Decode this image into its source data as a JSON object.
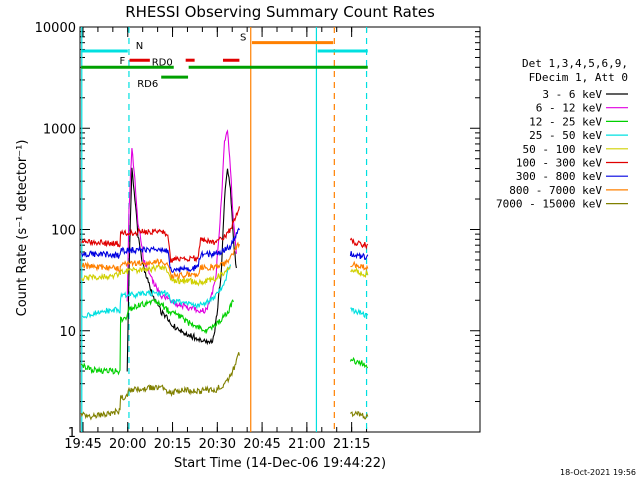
{
  "chart_data": {
    "type": "line",
    "title": "RHESSI Observing Summary Count Rates",
    "xlabel": "Start Time (14-Dec-06 19:44:22)",
    "ylabel": "Count Rate (s⁻¹ detector⁻¹)",
    "y_scale": "log",
    "x_range_minutes": [
      19.6,
      153.6
    ],
    "x_ticks": [
      {
        "t": 0.6,
        "label": "19:45"
      },
      {
        "t": 15.6,
        "label": "20:00"
      },
      {
        "t": 30.6,
        "label": "20:15"
      },
      {
        "t": 45.6,
        "label": "20:30"
      },
      {
        "t": 60.6,
        "label": "20:45"
      },
      {
        "t": 75.6,
        "label": "21:00"
      },
      {
        "t": 90.6,
        "label": "21:15"
      }
    ],
    "ylim": [
      1,
      10000
    ],
    "y_ticks": [
      {
        "v": 1,
        "label": "1"
      },
      {
        "v": 10,
        "label": "10"
      },
      {
        "v": 100,
        "label": "100"
      },
      {
        "v": 1000,
        "label": "1000"
      },
      {
        "v": 10000,
        "label": "10000"
      }
    ],
    "legend_header": [
      "Det 1,3,4,5,6,9,",
      "FDecim 1, Att 0"
    ],
    "series": [
      {
        "name": "3 - 6 keV",
        "color": "#000000",
        "points": [
          [
            0,
            null
          ],
          [
            15.2,
            null
          ],
          [
            15.4,
            4
          ],
          [
            16,
            40
          ],
          [
            17,
            380
          ],
          [
            18,
            200
          ],
          [
            19,
            90
          ],
          [
            21,
            40
          ],
          [
            24,
            22
          ],
          [
            27,
            15
          ],
          [
            30,
            12
          ],
          [
            33,
            10
          ],
          [
            36,
            9
          ],
          [
            39,
            8.5
          ],
          [
            42,
            8
          ],
          [
            44,
            7.5
          ],
          [
            45,
            11
          ],
          [
            47,
            40
          ],
          [
            48,
            200
          ],
          [
            49,
            380
          ],
          [
            50,
            250
          ],
          [
            51,
            80
          ],
          [
            52,
            40
          ],
          [
            53,
            null
          ],
          [
            96,
            null
          ]
        ]
      },
      {
        "name": "6 - 12 keV",
        "color": "#e000e0",
        "points": [
          [
            0,
            null
          ],
          [
            15.2,
            null
          ],
          [
            15.4,
            20
          ],
          [
            16,
            150
          ],
          [
            17,
            650
          ],
          [
            18,
            300
          ],
          [
            19,
            120
          ],
          [
            21,
            50
          ],
          [
            24,
            30
          ],
          [
            27,
            22
          ],
          [
            30,
            20
          ],
          [
            33,
            18
          ],
          [
            36,
            17
          ],
          [
            39,
            16
          ],
          [
            42,
            16
          ],
          [
            45,
            30
          ],
          [
            47,
            200
          ],
          [
            48,
            700
          ],
          [
            49,
            1000
          ],
          [
            50,
            400
          ],
          [
            51,
            120
          ],
          [
            52,
            60
          ],
          [
            53,
            null
          ],
          [
            96,
            null
          ]
        ]
      },
      {
        "name": "12 - 25 keV",
        "color": "#00d000",
        "points": [
          [
            0,
            4.5
          ],
          [
            3,
            4.2
          ],
          [
            8,
            4
          ],
          [
            12,
            4
          ],
          [
            13,
            4
          ],
          [
            13.2,
            13
          ],
          [
            15,
            13
          ],
          [
            16,
            16
          ],
          [
            20,
            18
          ],
          [
            25,
            19
          ],
          [
            28,
            17
          ],
          [
            30,
            15
          ],
          [
            33,
            14
          ],
          [
            36,
            12
          ],
          [
            39,
            11
          ],
          [
            42,
            10
          ],
          [
            45,
            11
          ],
          [
            47,
            13
          ],
          [
            49,
            15
          ],
          [
            51,
            20
          ],
          [
            53,
            null
          ],
          [
            90,
            null
          ],
          [
            90.2,
            5
          ],
          [
            93,
            5
          ],
          [
            96,
            4.5
          ]
        ]
      },
      {
        "name": "25 - 50 keV",
        "color": "#00e0e0",
        "points": [
          [
            0,
            null
          ],
          [
            0.2,
            14
          ],
          [
            5,
            15
          ],
          [
            10,
            16
          ],
          [
            13,
            16
          ],
          [
            13.2,
            22
          ],
          [
            20,
            23
          ],
          [
            27,
            24
          ],
          [
            29,
            23
          ],
          [
            30,
            20
          ],
          [
            33,
            19
          ],
          [
            36,
            19
          ],
          [
            39,
            18
          ],
          [
            42,
            19
          ],
          [
            45,
            22
          ],
          [
            48,
            30
          ],
          [
            50,
            45
          ],
          [
            53,
            null
          ],
          [
            90,
            null
          ],
          [
            90.2,
            16
          ],
          [
            93,
            15
          ],
          [
            96,
            14
          ]
        ]
      },
      {
        "name": "50 - 100 keV",
        "color": "#d0d000",
        "points": [
          [
            0,
            null
          ],
          [
            0.2,
            33
          ],
          [
            5,
            34
          ],
          [
            10,
            35
          ],
          [
            13,
            36
          ],
          [
            13.2,
            38
          ],
          [
            20,
            40
          ],
          [
            27,
            42
          ],
          [
            29,
            40
          ],
          [
            30,
            32
          ],
          [
            33,
            31
          ],
          [
            36,
            31
          ],
          [
            39,
            30
          ],
          [
            42,
            31
          ],
          [
            45,
            33
          ],
          [
            48,
            38
          ],
          [
            50,
            45
          ],
          [
            53,
            null
          ],
          [
            90,
            null
          ],
          [
            90.2,
            40
          ],
          [
            93,
            38
          ],
          [
            96,
            36
          ]
        ]
      },
      {
        "name": "100 - 300 keV",
        "color": "#e00000",
        "points": [
          [
            0,
            null
          ],
          [
            0.2,
            78
          ],
          [
            5,
            75
          ],
          [
            10,
            73
          ],
          [
            13,
            72
          ],
          [
            13.2,
            90
          ],
          [
            20,
            95
          ],
          [
            27,
            95
          ],
          [
            29,
            92
          ],
          [
            30,
            50
          ],
          [
            33,
            50
          ],
          [
            36,
            52
          ],
          [
            39,
            52
          ],
          [
            40,
            80
          ],
          [
            45,
            75
          ],
          [
            48,
            85
          ],
          [
            50,
            100
          ],
          [
            53,
            160
          ],
          [
            53.1,
            null
          ],
          [
            90,
            null
          ],
          [
            90.2,
            78
          ],
          [
            93,
            72
          ],
          [
            96,
            70
          ]
        ]
      },
      {
        "name": "300 - 800 keV",
        "color": "#0000e0",
        "points": [
          [
            0,
            null
          ],
          [
            0.2,
            58
          ],
          [
            5,
            57
          ],
          [
            10,
            56
          ],
          [
            13,
            55
          ],
          [
            13.2,
            62
          ],
          [
            20,
            63
          ],
          [
            27,
            64
          ],
          [
            29,
            62
          ],
          [
            30,
            40
          ],
          [
            33,
            40
          ],
          [
            36,
            41
          ],
          [
            39,
            42
          ],
          [
            40,
            56
          ],
          [
            45,
            58
          ],
          [
            48,
            62
          ],
          [
            50,
            68
          ],
          [
            53,
            100
          ],
          [
            53.1,
            null
          ],
          [
            90,
            null
          ],
          [
            90.2,
            58
          ],
          [
            93,
            55
          ],
          [
            96,
            54
          ]
        ]
      },
      {
        "name": "800 - 7000 keV",
        "color": "#ff8000",
        "points": [
          [
            0,
            null
          ],
          [
            0.2,
            44
          ],
          [
            5,
            43
          ],
          [
            10,
            42
          ],
          [
            13,
            41
          ],
          [
            13.2,
            46
          ],
          [
            20,
            47
          ],
          [
            27,
            48
          ],
          [
            29,
            46
          ],
          [
            30,
            35
          ],
          [
            33,
            35
          ],
          [
            36,
            36
          ],
          [
            39,
            36
          ],
          [
            40,
            42
          ],
          [
            45,
            43
          ],
          [
            48,
            46
          ],
          [
            50,
            52
          ],
          [
            53,
            75
          ],
          [
            53.1,
            null
          ],
          [
            90,
            null
          ],
          [
            90.2,
            46
          ],
          [
            93,
            43
          ],
          [
            96,
            42
          ]
        ]
      },
      {
        "name": "7000 - 15000 keV",
        "color": "#808000",
        "points": [
          [
            0,
            1.5
          ],
          [
            3,
            1.4
          ],
          [
            8,
            1.5
          ],
          [
            12,
            1.6
          ],
          [
            13,
            1.6
          ],
          [
            13.2,
            2.2
          ],
          [
            15,
            2.2
          ],
          [
            16,
            2.6
          ],
          [
            20,
            2.7
          ],
          [
            27,
            2.8
          ],
          [
            30,
            2.4
          ],
          [
            33,
            2.6
          ],
          [
            36,
            2.6
          ],
          [
            39,
            2.5
          ],
          [
            42,
            2.6
          ],
          [
            45,
            2.6
          ],
          [
            48,
            3
          ],
          [
            50,
            3.5
          ],
          [
            53,
            6
          ],
          [
            53.1,
            null
          ],
          [
            90,
            null
          ],
          [
            90.2,
            1.5
          ],
          [
            93,
            1.5
          ],
          [
            96,
            1.4
          ]
        ]
      }
    ],
    "flag_bars": [
      {
        "label": "N",
        "color": "#00e0e0",
        "segments": [
          [
            0,
            15.6
          ],
          [
            79.2,
            96
          ]
        ],
        "value": 5800
      },
      {
        "label": "F",
        "color": "#e00000",
        "segments": [
          [
            16.2,
            23
          ],
          [
            35,
            38
          ],
          [
            47.5,
            53
          ]
        ],
        "value": 4700
      },
      {
        "label": "RD0",
        "color": "#00a000",
        "segments": [
          [
            0,
            31
          ],
          [
            36,
            96
          ]
        ],
        "value": 4000
      },
      {
        "label": "RD6",
        "color": "#00a000",
        "segments": [
          [
            26.8,
            35.8
          ]
        ],
        "value": 3200
      },
      {
        "label": "S",
        "color": "#ff8000",
        "segments": [
          [
            57.2,
            84.4
          ]
        ],
        "value": 7000
      }
    ],
    "vertical_lines": [
      {
        "t": 0.2,
        "color": "#00e0e0",
        "style": "solid"
      },
      {
        "t": 16.0,
        "color": "#00e0e0",
        "style": "dashed"
      },
      {
        "t": 56.8,
        "color": "#ff8000",
        "style": "solid"
      },
      {
        "t": 78.8,
        "color": "#00e0e0",
        "style": "solid"
      },
      {
        "t": 84.8,
        "color": "#ff8000",
        "style": "dashed"
      },
      {
        "t": 95.6,
        "color": "#00e0e0",
        "style": "dashed"
      }
    ],
    "footer_timestamp": "18-Oct-2021 19:56"
  }
}
